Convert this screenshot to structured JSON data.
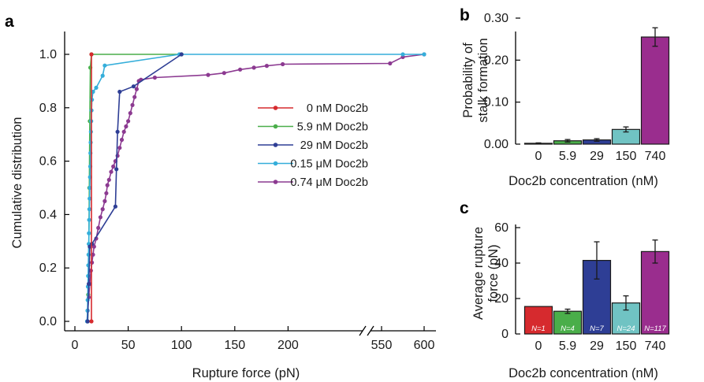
{
  "panel_labels": {
    "a": "a",
    "b": "b",
    "c": "c"
  },
  "chart_data": [
    {
      "id": "a",
      "type": "line",
      "xlabel": "Rupture force (pN)",
      "ylabel": "Cumulative distribution",
      "x_ticks": [
        "0",
        "50",
        "100",
        "150",
        "200",
        "550",
        "600"
      ],
      "y_ticks": [
        "0.0",
        "0.2",
        "0.4",
        "0.6",
        "0.8",
        "1.0"
      ],
      "axis_break": "between 200 and 550",
      "ylim": [
        0,
        1
      ],
      "legend_position": "center-right",
      "series": [
        {
          "name": "0 nM Doc2b",
          "color": "#d62a2e",
          "points": [
            [
              15.5,
              0.0
            ],
            [
              15.5,
              1.0
            ]
          ]
        },
        {
          "name": "5.9 nM Doc2b",
          "color": "#4aae4a",
          "points": [
            [
              12,
              0.0
            ],
            [
              12.5,
              0.1
            ],
            [
              13,
              0.25
            ],
            [
              13.5,
              0.5
            ],
            [
              14,
              0.75
            ],
            [
              14.5,
              0.95
            ],
            [
              15.5,
              1.0
            ],
            [
              100,
              1.0
            ]
          ]
        },
        {
          "name": "29 nM Doc2b",
          "color": "#2e3e95",
          "points": [
            [
              12,
              0.0
            ],
            [
              13,
              0.14
            ],
            [
              14,
              0.28
            ],
            [
              16,
              0.29
            ],
            [
              38,
              0.43
            ],
            [
              39,
              0.57
            ],
            [
              40,
              0.71
            ],
            [
              42,
              0.86
            ],
            [
              55,
              0.88
            ],
            [
              100,
              1.0
            ]
          ]
        },
        {
          "name": "0.15 μM Doc2b",
          "color": "#35aeda",
          "points": [
            [
              11.5,
              0.0
            ],
            [
              11.8,
              0.04
            ],
            [
              12,
              0.08
            ],
            [
              12.2,
              0.13
            ],
            [
              12.4,
              0.17
            ],
            [
              12.6,
              0.21
            ],
            [
              12.8,
              0.25
            ],
            [
              13,
              0.29
            ],
            [
              13.2,
              0.33
            ],
            [
              13.4,
              0.38
            ],
            [
              13.6,
              0.42
            ],
            [
              13.8,
              0.46
            ],
            [
              14,
              0.5
            ],
            [
              14.2,
              0.54
            ],
            [
              14.4,
              0.58
            ],
            [
              14.6,
              0.63
            ],
            [
              14.8,
              0.67
            ],
            [
              15,
              0.71
            ],
            [
              15.3,
              0.75
            ],
            [
              15.6,
              0.79
            ],
            [
              16,
              0.83
            ],
            [
              17,
              0.86
            ],
            [
              20,
              0.875
            ],
            [
              26,
              0.92
            ],
            [
              28,
              0.958
            ],
            [
              98,
              1.0
            ],
            [
              575,
              1.0
            ],
            [
              600,
              1.0
            ]
          ]
        },
        {
          "name": "0.74 μM Doc2b",
          "color": "#8c3a91",
          "points": [
            [
              11.5,
              0.0
            ],
            [
              12,
              0.04
            ],
            [
              13,
              0.09
            ],
            [
              14,
              0.14
            ],
            [
              15,
              0.19
            ],
            [
              16,
              0.22
            ],
            [
              17,
              0.25
            ],
            [
              18,
              0.28
            ],
            [
              20,
              0.31
            ],
            [
              22,
              0.35
            ],
            [
              24,
              0.39
            ],
            [
              26,
              0.42
            ],
            [
              28,
              0.45
            ],
            [
              29.5,
              0.48
            ],
            [
              30.5,
              0.51
            ],
            [
              32,
              0.53
            ],
            [
              34,
              0.56
            ],
            [
              36,
              0.58
            ],
            [
              38,
              0.6
            ],
            [
              40,
              0.62
            ],
            [
              42,
              0.65
            ],
            [
              44,
              0.68
            ],
            [
              46,
              0.71
            ],
            [
              48,
              0.73
            ],
            [
              50,
              0.75
            ],
            [
              52,
              0.78
            ],
            [
              54,
              0.81
            ],
            [
              56,
              0.84
            ],
            [
              58,
              0.87
            ],
            [
              60,
              0.9
            ],
            [
              62,
              0.905
            ],
            [
              75,
              0.913
            ],
            [
              125,
              0.923
            ],
            [
              140,
              0.93
            ],
            [
              155,
              0.943
            ],
            [
              168,
              0.95
            ],
            [
              180,
              0.957
            ],
            [
              195,
              0.963
            ],
            [
              560,
              0.966
            ],
            [
              575,
              0.99
            ],
            [
              600,
              1.0
            ]
          ]
        }
      ]
    },
    {
      "id": "b",
      "type": "bar",
      "xlabel": "Doc2b concentration (nM)",
      "ylabel": [
        "Probability of",
        "stalk formation"
      ],
      "categories": [
        "0",
        "5.9",
        "29",
        "150",
        "740"
      ],
      "values": [
        0.002,
        0.008,
        0.01,
        0.035,
        0.255
      ],
      "errors": [
        0.001,
        0.003,
        0.003,
        0.006,
        0.022
      ],
      "colors": [
        "#d62a2e",
        "#4aae4a",
        "#2e3e95",
        "#70c3c3",
        "#9a2d8e"
      ],
      "y_ticks": [
        "0.00",
        "0.10",
        "0.20",
        "0.30"
      ],
      "ylim": [
        0,
        0.32
      ]
    },
    {
      "id": "c",
      "type": "bar",
      "xlabel": "Doc2b concentration (nM)",
      "ylabel": [
        "Average rupture",
        "force (pN)"
      ],
      "categories": [
        "0",
        "5.9",
        "29",
        "150",
        "740"
      ],
      "values": [
        15.5,
        12.8,
        41.5,
        17.5,
        46.5
      ],
      "errors": [
        0,
        1.2,
        10.5,
        4.0,
        6.5
      ],
      "n_labels": [
        "N=1",
        "N=4",
        "N=7",
        "N=24",
        "N=117"
      ],
      "colors": [
        "#d62a2e",
        "#4aae4a",
        "#2e3e95",
        "#70c3c3",
        "#9a2d8e"
      ],
      "y_ticks": [
        "0",
        "20",
        "40",
        "60"
      ],
      "ylim": [
        0,
        70
      ]
    }
  ]
}
